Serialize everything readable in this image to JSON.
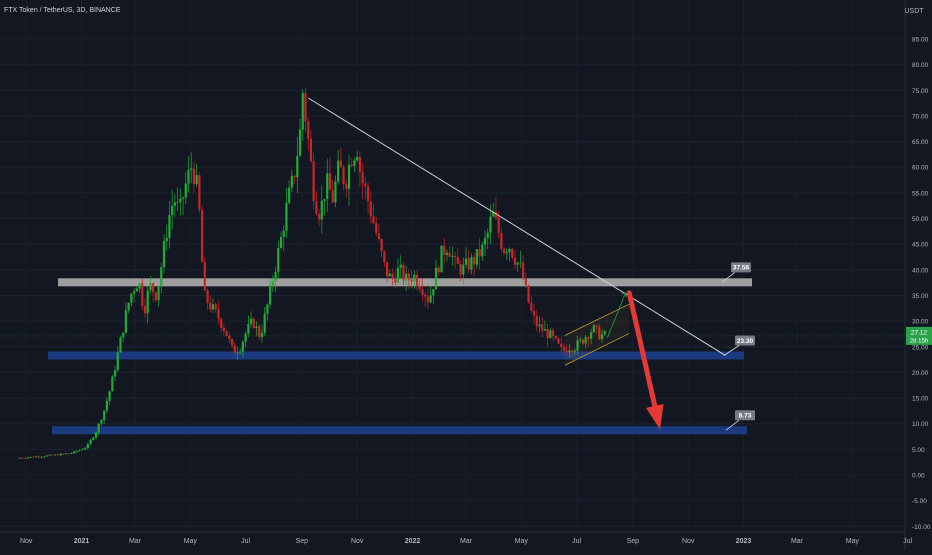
{
  "header": {
    "symbol_line": "FTX Token / TetherUS, 3D, BINANCE"
  },
  "chart_data": {
    "type": "candlestick",
    "currency_label": "USDT",
    "y_axis": {
      "ylim": [
        -10,
        90
      ],
      "ticks": [
        85,
        80,
        75,
        70,
        65,
        60,
        55,
        50,
        45,
        40,
        35,
        30,
        25,
        20,
        15,
        10,
        5,
        0,
        -5,
        -10
      ],
      "tick_labels": [
        "85.00",
        "80.00",
        "75.00",
        "70.00",
        "65.00",
        "60.00",
        "55.00",
        "50.00",
        "45.00",
        "40.00",
        "35.00",
        "30.00",
        "25.00",
        "20.00",
        "15.00",
        "10.00",
        "5.00",
        "0.00",
        "-5.00",
        "-10.00"
      ]
    },
    "x_axis": {
      "labels": [
        "Nov",
        "2021",
        "Mar",
        "May",
        "Jul",
        "Sep",
        "Nov",
        "2022",
        "Mar",
        "May",
        "Jul",
        "Sep",
        "Nov",
        "2023",
        "Mar",
        "May",
        "Jul"
      ],
      "bold_labels": [
        "2021",
        "2022",
        "2023"
      ]
    },
    "price_path": [
      [
        "2020-10-25",
        3.3
      ],
      [
        "2020-12-01",
        3.8
      ],
      [
        "2020-12-25",
        4.3
      ],
      [
        "2021-01-10",
        5.5
      ],
      [
        "2021-01-20",
        8.5
      ],
      [
        "2021-01-28",
        12
      ],
      [
        "2021-02-05",
        17
      ],
      [
        "2021-02-10",
        21
      ],
      [
        "2021-02-17",
        27
      ],
      [
        "2021-02-24",
        33
      ],
      [
        "2021-03-01",
        36
      ],
      [
        "2021-03-08",
        38
      ],
      [
        "2021-03-14",
        32
      ],
      [
        "2021-03-20",
        37
      ],
      [
        "2021-03-28",
        35
      ],
      [
        "2021-04-04",
        43
      ],
      [
        "2021-04-10",
        50
      ],
      [
        "2021-04-16",
        54
      ],
      [
        "2021-04-22",
        51
      ],
      [
        "2021-04-28",
        56
      ],
      [
        "2021-05-05",
        60
      ],
      [
        "2021-05-10",
        58
      ],
      [
        "2021-05-14",
        51
      ],
      [
        "2021-05-19",
        35
      ],
      [
        "2021-05-26",
        33
      ],
      [
        "2021-06-03",
        31
      ],
      [
        "2021-06-12",
        28
      ],
      [
        "2021-06-20",
        24
      ],
      [
        "2021-06-28",
        25
      ],
      [
        "2021-07-05",
        28
      ],
      [
        "2021-07-12",
        30
      ],
      [
        "2021-07-20",
        27
      ],
      [
        "2021-07-28",
        33
      ],
      [
        "2021-08-05",
        40
      ],
      [
        "2021-08-12",
        46
      ],
      [
        "2021-08-19",
        53
      ],
      [
        "2021-08-26",
        58
      ],
      [
        "2021-09-03",
        68
      ],
      [
        "2021-09-06",
        78
      ],
      [
        "2021-09-08",
        70
      ],
      [
        "2021-09-13",
        62
      ],
      [
        "2021-09-18",
        54
      ],
      [
        "2021-09-24",
        51
      ],
      [
        "2021-10-01",
        57
      ],
      [
        "2021-10-08",
        54
      ],
      [
        "2021-10-15",
        60
      ],
      [
        "2021-10-22",
        57
      ],
      [
        "2021-10-28",
        62
      ],
      [
        "2021-11-04",
        64
      ],
      [
        "2021-11-08",
        58
      ],
      [
        "2021-11-14",
        55
      ],
      [
        "2021-11-21",
        50
      ],
      [
        "2021-11-28",
        45
      ],
      [
        "2021-12-05",
        40
      ],
      [
        "2021-12-12",
        38
      ],
      [
        "2021-12-20",
        40
      ],
      [
        "2021-12-28",
        38
      ],
      [
        "2022-01-05",
        39
      ],
      [
        "2022-01-14",
        37
      ],
      [
        "2022-01-22",
        34
      ],
      [
        "2022-01-28",
        38
      ],
      [
        "2022-02-05",
        43
      ],
      [
        "2022-02-12",
        45
      ],
      [
        "2022-02-20",
        41
      ],
      [
        "2022-02-28",
        40
      ],
      [
        "2022-03-06",
        41
      ],
      [
        "2022-03-14",
        42
      ],
      [
        "2022-03-22",
        44
      ],
      [
        "2022-03-28",
        47
      ],
      [
        "2022-04-02",
        51
      ],
      [
        "2022-04-08",
        48
      ],
      [
        "2022-04-14",
        44
      ],
      [
        "2022-04-20",
        45
      ],
      [
        "2022-04-28",
        42
      ],
      [
        "2022-05-04",
        40
      ],
      [
        "2022-05-10",
        35
      ],
      [
        "2022-05-16",
        31
      ],
      [
        "2022-05-22",
        29
      ],
      [
        "2022-05-30",
        28
      ],
      [
        "2022-06-06",
        27
      ],
      [
        "2022-06-12",
        25.5
      ],
      [
        "2022-06-18",
        24
      ],
      [
        "2022-06-25",
        25
      ],
      [
        "2022-07-02",
        25
      ],
      [
        "2022-07-09",
        26
      ],
      [
        "2022-07-16",
        27.5
      ],
      [
        "2022-07-22",
        28.5
      ],
      [
        "2022-07-28",
        27.5
      ],
      [
        "2022-08-03",
        27.12
      ]
    ],
    "horizontal_levels": [
      {
        "label": "37.56",
        "value": 37.56,
        "color": "#9e9e9e"
      },
      {
        "label": "23.30",
        "value": 23.3,
        "color": "#1c3a80"
      },
      {
        "label": "8.73",
        "value": 8.73,
        "color": "#1c3a80"
      }
    ],
    "trendline": {
      "from": [
        "2021-09-08",
        73.5
      ],
      "to": [
        "2022-12-12",
        23.3
      ]
    },
    "channel": {
      "upper": [
        [
          "2022-06-18",
          27.2
        ],
        [
          "2022-08-28",
          33.3
        ]
      ],
      "lower": [
        [
          "2022-06-18",
          21.4
        ],
        [
          "2022-08-28",
          27.6
        ]
      ]
    },
    "projection_up": {
      "from": [
        "2022-08-04",
        26.8
      ],
      "to": [
        "2022-08-24",
        35.5
      ]
    },
    "projection_down": {
      "from": [
        "2022-08-28",
        35.5
      ],
      "to": [
        "2022-10-01",
        8.9
      ]
    },
    "last_price": {
      "value": "27.12",
      "countdown": "2d 15h",
      "color": "#2aa34a"
    },
    "colors": {
      "up": "#26a69a",
      "down": "#ef5350",
      "bull_green": "#22ab35",
      "bear_red": "#c62828",
      "background": "#131722",
      "arrow": "#e53935"
    }
  }
}
